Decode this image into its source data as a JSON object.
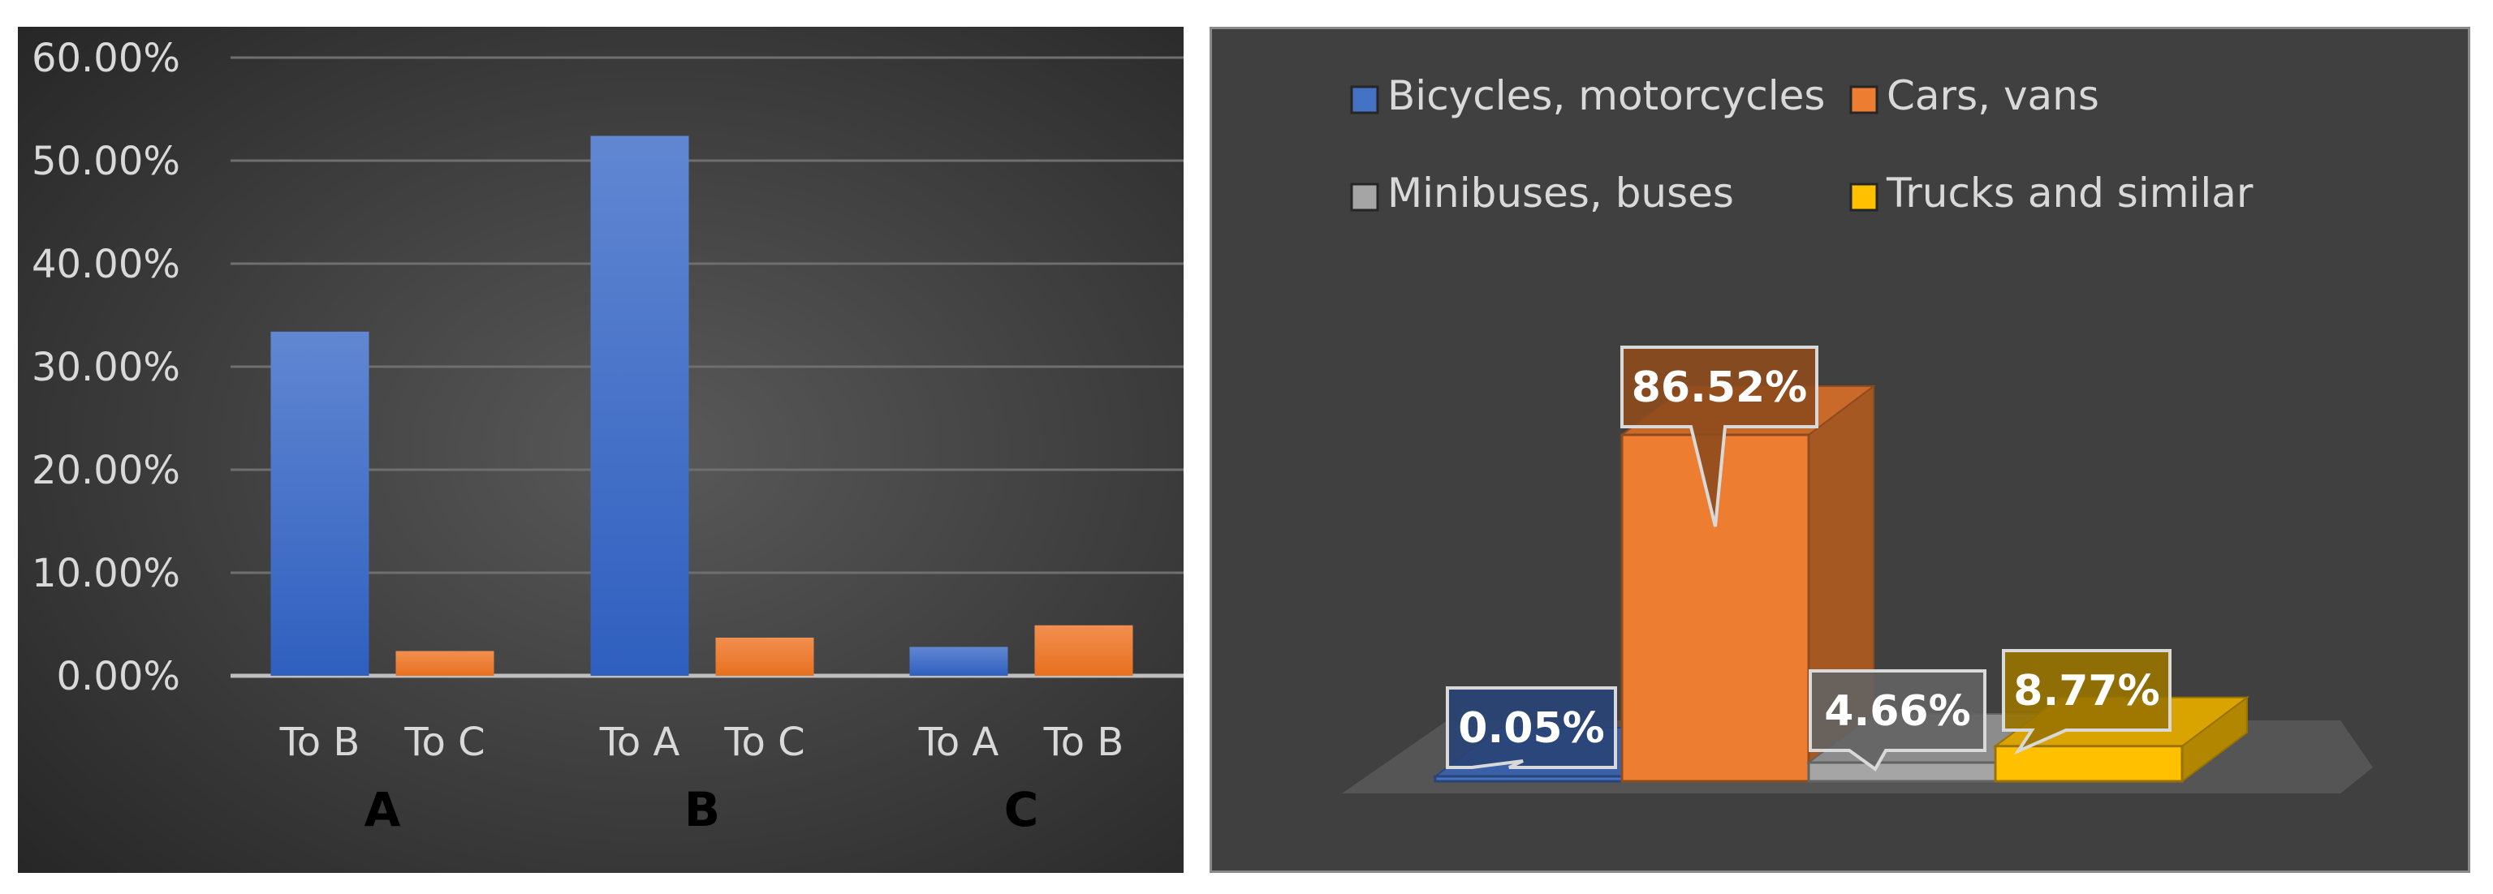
{
  "chart_data": [
    {
      "type": "bar",
      "title": "",
      "xlabel": "",
      "ylabel": "",
      "groups": [
        {
          "name": "A",
          "categories": [
            "To B",
            "To C"
          ],
          "values": [
            33.4,
            2.4
          ]
        },
        {
          "name": "B",
          "categories": [
            "To A",
            "To C"
          ],
          "values": [
            52.4,
            3.7
          ]
        },
        {
          "name": "C",
          "categories": [
            "To A",
            "To B"
          ],
          "values": [
            2.8,
            4.9
          ]
        }
      ],
      "bar_colors": [
        "#4472c4",
        "#ed7d31"
      ],
      "y_ticks": [
        "0.00%",
        "10.00%",
        "20.00%",
        "30.00%",
        "40.00%",
        "50.00%",
        "60.00%"
      ],
      "ylim": [
        0,
        60
      ],
      "grid": true
    },
    {
      "type": "bar",
      "title": "",
      "style": "3d",
      "series": [
        {
          "name": "Bicycles, motorcycles",
          "value": 0.05,
          "label": "0.05%",
          "color": "#4472c4"
        },
        {
          "name": "Cars, vans",
          "value": 86.52,
          "label": "86.52%",
          "color": "#ed7d31"
        },
        {
          "name": "Minibuses, buses",
          "value": 4.66,
          "label": "4.66%",
          "color": "#a5a5a5"
        },
        {
          "name": "Trucks and similar",
          "value": 8.77,
          "label": "8.77%",
          "color": "#ffc000"
        }
      ],
      "legend_position": "top"
    }
  ]
}
